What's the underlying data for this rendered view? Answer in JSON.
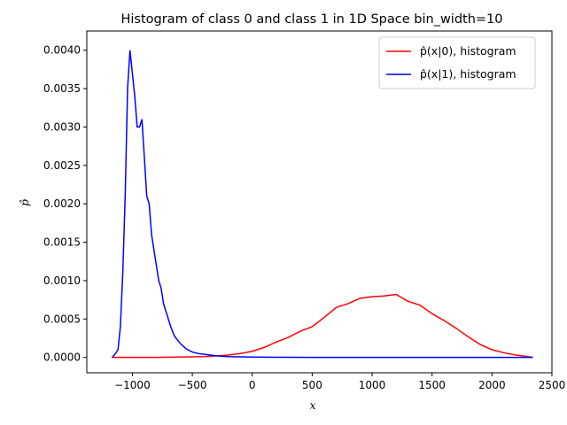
{
  "chart_data": {
    "type": "line",
    "title": "Histogram of class 0 and class 1 in 1D Space bin_width=10",
    "xlabel": "x",
    "ylabel": "p̂",
    "xlim": [
      -1380,
      2500
    ],
    "ylim": [
      -0.0002,
      0.00425
    ],
    "xticks": [
      -1000,
      -500,
      0,
      500,
      1000,
      1500,
      2000,
      2500
    ],
    "yticks": [
      0.0,
      0.0005,
      0.001,
      0.0015,
      0.002,
      0.0025,
      0.003,
      0.0035,
      0.004
    ],
    "xtick_labels": [
      "−1000",
      "−500",
      "0",
      "500",
      "1000",
      "1500",
      "2000",
      "2500"
    ],
    "ytick_labels": [
      "0.0000",
      "0.0005",
      "0.0010",
      "0.0015",
      "0.0020",
      "0.0025",
      "0.0030",
      "0.0035",
      "0.0040"
    ],
    "legend_position": "top-right",
    "grid": false,
    "series": [
      {
        "name": "p̂(x|0), histogram",
        "color": "#ff0000",
        "x": [
          -1170,
          -800,
          -400,
          -200,
          -100,
          0,
          100,
          200,
          300,
          400,
          500,
          600,
          700,
          800,
          900,
          1000,
          1100,
          1200,
          1300,
          1400,
          1500,
          1600,
          1700,
          1800,
          1900,
          2000,
          2100,
          2200,
          2300,
          2340
        ],
        "y": [
          0.0,
          0.0,
          1e-05,
          3e-05,
          5e-05,
          8e-05,
          0.00013,
          0.0002,
          0.00026,
          0.00034,
          0.0004,
          0.00052,
          0.00065,
          0.0007,
          0.00077,
          0.00079,
          0.0008,
          0.00082,
          0.00073,
          0.00068,
          0.00057,
          0.00048,
          0.00038,
          0.00027,
          0.00017,
          0.0001,
          6e-05,
          3e-05,
          1e-05,
          0.0
        ]
      },
      {
        "name": "p̂(x|1), histogram",
        "color": "#0000ff",
        "x": [
          -1170,
          -1150,
          -1120,
          -1100,
          -1080,
          -1060,
          -1040,
          -1020,
          -1000,
          -980,
          -960,
          -940,
          -920,
          -900,
          -880,
          -860,
          -840,
          -820,
          -800,
          -780,
          -760,
          -740,
          -720,
          -700,
          -680,
          -650,
          -600,
          -550,
          -500,
          -450,
          -400,
          -300,
          -200,
          -100,
          0,
          100,
          200,
          300,
          500,
          1000,
          1500,
          2000,
          2340
        ],
        "y": [
          0.0,
          3e-05,
          0.0001,
          0.0004,
          0.0011,
          0.0021,
          0.0035,
          0.004,
          0.0037,
          0.0034,
          0.003,
          0.003,
          0.0031,
          0.0026,
          0.0021,
          0.002,
          0.0016,
          0.0014,
          0.0012,
          0.001,
          0.0009,
          0.0007,
          0.0006,
          0.0005,
          0.0004,
          0.00028,
          0.00018,
          0.00011,
          7e-05,
          5e-05,
          4e-05,
          2e-05,
          1e-05,
          8e-06,
          5e-06,
          3e-06,
          2e-06,
          1e-06,
          0.0,
          0.0,
          0.0,
          0.0,
          0.0
        ]
      }
    ]
  }
}
